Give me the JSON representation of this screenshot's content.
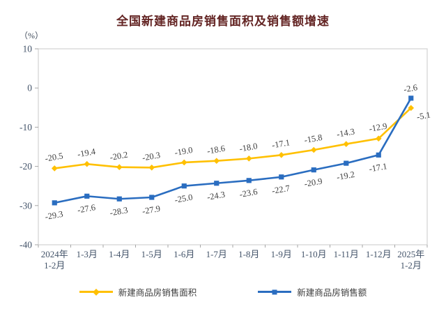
{
  "title": "全国新建商品房销售面积及销售额增速",
  "unit_label": "（%）",
  "chart_data": {
    "type": "line",
    "categories": [
      [
        "2024年",
        "1-2月"
      ],
      [
        "1-3月"
      ],
      [
        "1-4月"
      ],
      [
        "1-5月"
      ],
      [
        "1-6月"
      ],
      [
        "1-7月"
      ],
      [
        "1-8月"
      ],
      [
        "1-9月"
      ],
      [
        "1-10月"
      ],
      [
        "1-11月"
      ],
      [
        "1-12月"
      ],
      [
        "2025年",
        "1-2月"
      ]
    ],
    "series": [
      {
        "name": "新建商品房销售面积",
        "color": "#FFC000",
        "marker": "diamond",
        "values": [
          -20.5,
          -19.4,
          -20.2,
          -20.3,
          -19.0,
          -18.6,
          -18.0,
          -17.1,
          -15.8,
          -14.3,
          -12.9,
          -5.1
        ],
        "label_side": "above",
        "last_label_side": "below-right"
      },
      {
        "name": "新建商品房销售额",
        "color": "#2A6DC0",
        "marker": "square",
        "values": [
          -29.3,
          -27.6,
          -28.3,
          -27.9,
          -25.0,
          -24.3,
          -23.6,
          -22.7,
          -20.9,
          -19.2,
          -17.1,
          -2.6
        ],
        "label_side": "below",
        "last_label_side": "above"
      }
    ],
    "ylim": [
      -40,
      10
    ],
    "yticks": [
      10,
      0,
      -10,
      -20,
      -30,
      -40
    ],
    "grid": false,
    "legend_position": "bottom",
    "label_rotation_deg": -10,
    "colors": {
      "title": "#632423",
      "axis_text": "#44546A",
      "data_label": "#404040",
      "plot_border": "#D6D6D6",
      "tick": "#A6A6A6"
    }
  }
}
